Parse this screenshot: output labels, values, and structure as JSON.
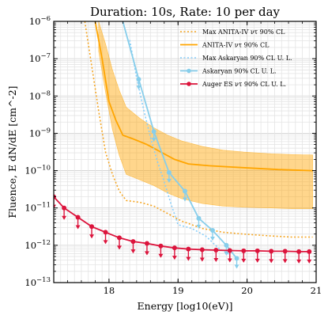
{
  "chart_data": {
    "type": "line",
    "title": "Duration: 10s, Rate: 10 per day",
    "xlabel": "Energy [log10(eV)]",
    "ylabel": "Fluence, E dN/dE [cm^-2]",
    "xlim": [
      17.2,
      21.0
    ],
    "ylim_log10": [
      -13,
      -6
    ],
    "y_scale": "log",
    "grid": true,
    "legend_position": "top-right",
    "x_ticks": [
      {
        "value": 18,
        "label": "18"
      },
      {
        "value": 19,
        "label": "19"
      },
      {
        "value": 20,
        "label": "20"
      },
      {
        "value": 21,
        "label": "21"
      }
    ],
    "y_ticks": [
      {
        "exp": -13,
        "label": "10",
        "sup": "−13"
      },
      {
        "exp": -12,
        "label": "10",
        "sup": "−12"
      },
      {
        "exp": -11,
        "label": "10",
        "sup": "−11"
      },
      {
        "exp": -10,
        "label": "10",
        "sup": "−10"
      },
      {
        "exp": -9,
        "label": "10",
        "sup": "−9"
      },
      {
        "exp": -8,
        "label": "10",
        "sup": "−8"
      },
      {
        "exp": -7,
        "label": "10",
        "sup": "−7"
      },
      {
        "exp": -6,
        "label": "10",
        "sup": "−6"
      }
    ],
    "series": [
      {
        "name": "Max ANITA-IV ντ 90% CL",
        "color": "#f5a623",
        "style": "dotted",
        "log10_x": [
          17.65,
          17.75,
          17.85,
          17.95,
          18.05,
          18.15,
          18.25,
          18.45,
          18.65,
          18.85,
          19.05,
          19.35,
          19.65,
          19.95,
          20.35,
          20.65,
          20.95
        ],
        "log10_y": [
          -6.0,
          -7.2,
          -8.4,
          -9.5,
          -10.1,
          -10.55,
          -10.8,
          -10.85,
          -10.95,
          -11.15,
          -11.35,
          -11.55,
          -11.65,
          -11.7,
          -11.75,
          -11.78,
          -11.78
        ]
      },
      {
        "name": "ANITA-IV ντ 90% CL",
        "color": "#ffa500",
        "style": "solid",
        "log10_x": [
          17.8,
          17.9,
          18.0,
          18.1,
          18.2,
          18.35,
          18.55,
          18.75,
          18.95,
          19.15,
          19.45,
          19.75,
          20.05,
          20.45,
          20.95
        ],
        "log10_y": [
          -6.0,
          -7.0,
          -8.15,
          -8.65,
          -9.05,
          -9.15,
          -9.3,
          -9.5,
          -9.7,
          -9.82,
          -9.87,
          -9.9,
          -9.93,
          -9.97,
          -10.0
        ]
      },
      {
        "name": "Max Askaryan 90% CL U. L.",
        "color": "#87cefa",
        "style": "dotted",
        "log10_x": [
          18.3,
          18.4,
          18.5,
          18.6,
          18.7,
          18.8,
          18.9,
          19.0,
          19.2,
          19.4,
          19.6,
          19.75
        ],
        "log10_y": [
          -6.5,
          -7.5,
          -8.35,
          -9.1,
          -9.75,
          -10.3,
          -10.9,
          -11.45,
          -11.55,
          -11.75,
          -12.1,
          -12.25
        ]
      },
      {
        "name": "Askaryan 90% CL U. L.",
        "color": "#87ceeb",
        "style": "solid-markers",
        "log10_x": [
          18.2,
          18.43,
          18.65,
          18.87,
          19.1,
          19.3,
          19.5,
          19.7,
          19.85
        ],
        "log10_y": [
          -6.0,
          -7.55,
          -8.95,
          -10.05,
          -10.55,
          -11.28,
          -11.6,
          -12.0,
          -12.35
        ]
      },
      {
        "name": "Auger ES ντ 90% CL U. L.",
        "color": "#dc143c",
        "style": "solid-markers",
        "log10_x": [
          17.2,
          17.35,
          17.55,
          17.75,
          17.95,
          18.15,
          18.35,
          18.55,
          18.75,
          18.95,
          19.15,
          19.35,
          19.55,
          19.75,
          19.95,
          20.15,
          20.35,
          20.55,
          20.75,
          20.9
        ],
        "log10_y": [
          -10.7,
          -11.0,
          -11.25,
          -11.5,
          -11.65,
          -11.8,
          -11.9,
          -11.95,
          -12.02,
          -12.07,
          -12.1,
          -12.12,
          -12.13,
          -12.14,
          -12.15,
          -12.15,
          -12.16,
          -12.16,
          -12.17,
          -12.17
        ]
      }
    ],
    "band": {
      "color": "#ffa500",
      "log10_x": [
        17.85,
        17.95,
        18.05,
        18.15,
        18.25,
        18.45,
        18.65,
        18.85,
        19.05,
        19.35,
        19.65,
        19.95,
        20.35,
        20.65,
        20.95
      ],
      "log10_y_upper": [
        -6.0,
        -6.6,
        -7.3,
        -7.85,
        -8.3,
        -8.6,
        -8.85,
        -9.05,
        -9.2,
        -9.35,
        -9.45,
        -9.5,
        -9.55,
        -9.57,
        -9.58
      ],
      "log10_y_lower": [
        -6.8,
        -7.9,
        -8.9,
        -9.6,
        -10.1,
        -10.25,
        -10.4,
        -10.6,
        -10.75,
        -10.88,
        -10.95,
        -10.98,
        -11.0,
        -11.02,
        -11.02
      ]
    }
  }
}
